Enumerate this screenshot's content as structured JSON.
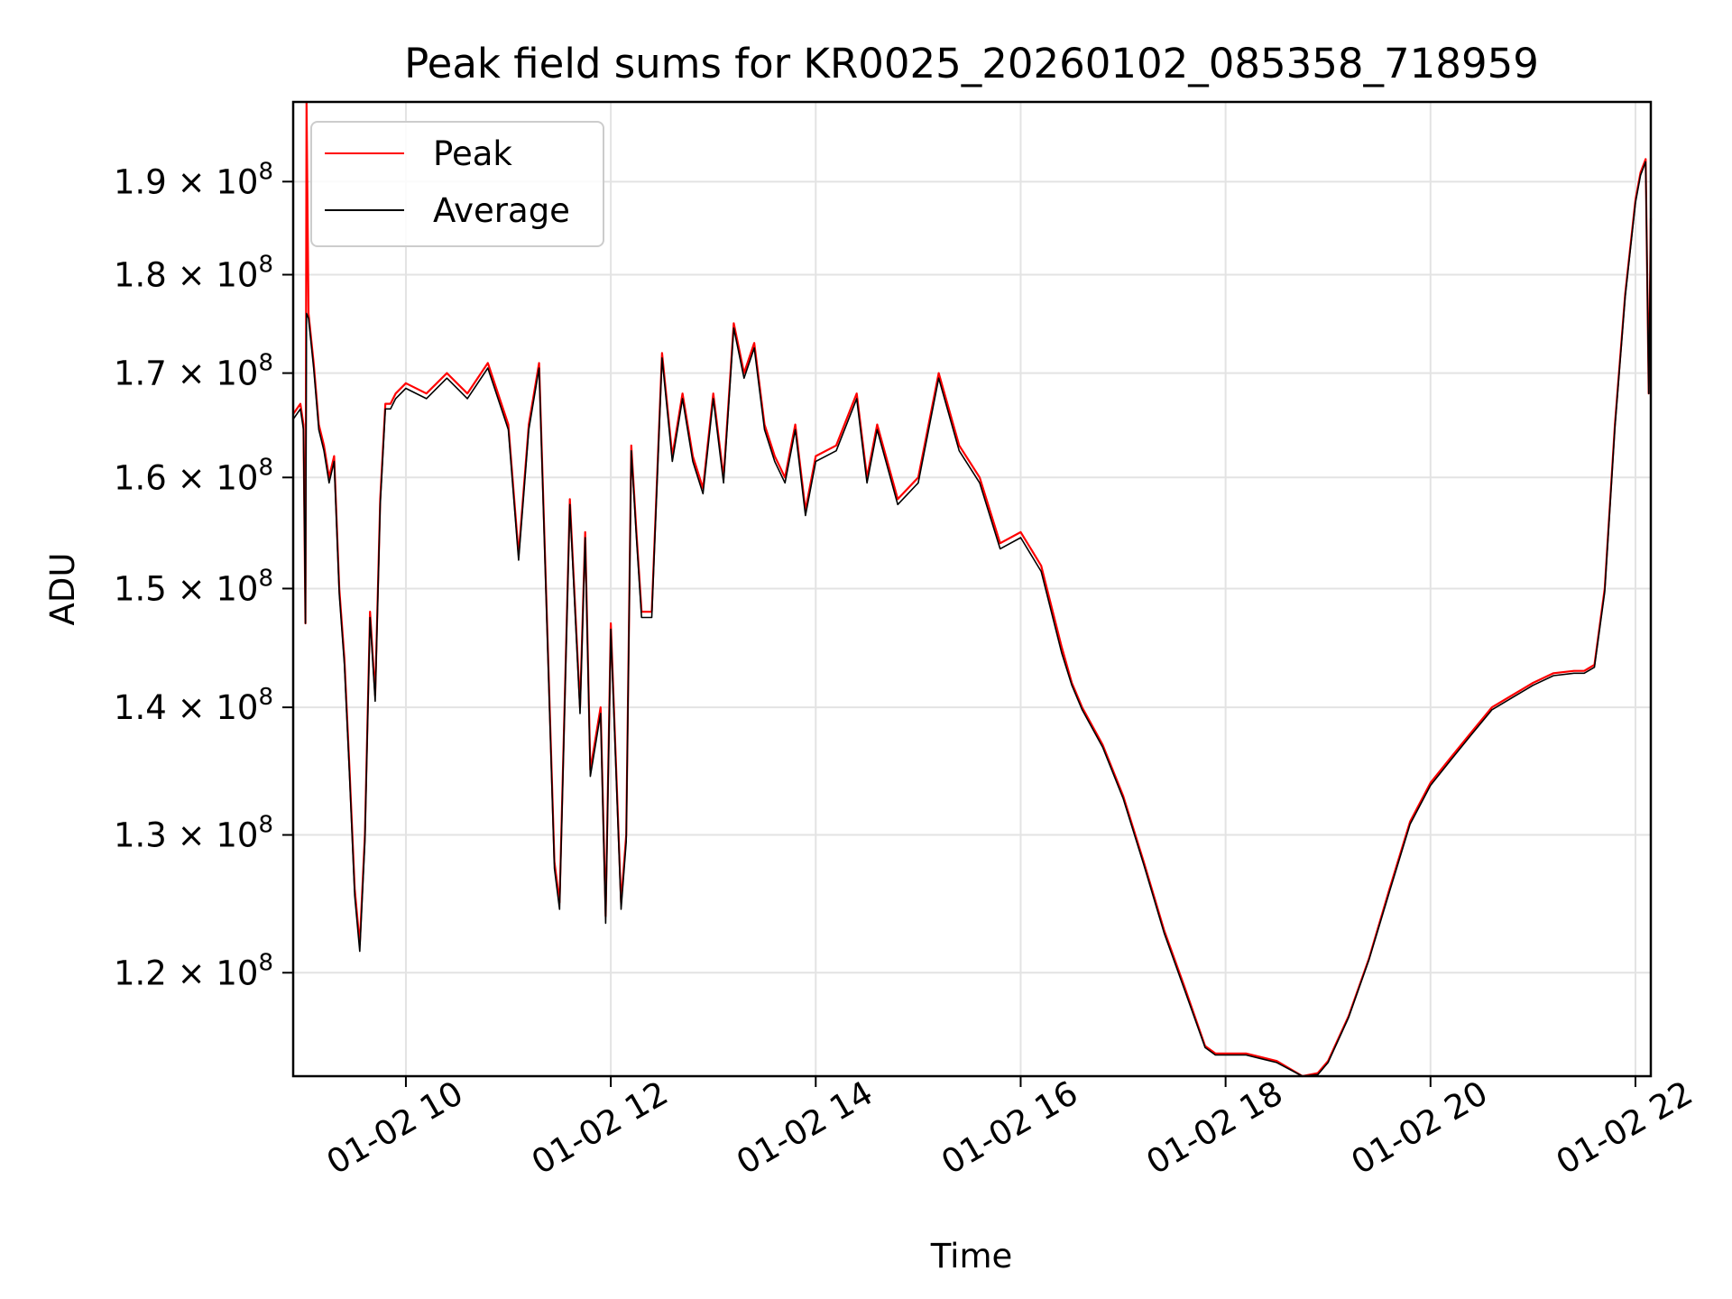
{
  "chart_data": {
    "type": "line",
    "title": "Peak field sums for KR0025_20260102_085358_718959",
    "xlabel": "Time",
    "ylabel": "ADU",
    "y_scale": "log",
    "xlim_hours": [
      8.9,
      22.15
    ],
    "ylim": [
      113000000,
      199000000
    ],
    "grid": true,
    "legend_position": "upper-left",
    "x_ticks": [
      {
        "value": 10,
        "label": "01-02 10"
      },
      {
        "value": 12,
        "label": "01-02 12"
      },
      {
        "value": 14,
        "label": "01-02 14"
      },
      {
        "value": 16,
        "label": "01-02 16"
      },
      {
        "value": 18,
        "label": "01-02 18"
      },
      {
        "value": 20,
        "label": "01-02 20"
      },
      {
        "value": 22,
        "label": "01-02 22"
      }
    ],
    "y_ticks": [
      {
        "value": 120000000,
        "mantissa": "1.2",
        "exp": "8"
      },
      {
        "value": 130000000,
        "mantissa": "1.3",
        "exp": "8"
      },
      {
        "value": 140000000,
        "mantissa": "1.4",
        "exp": "8"
      },
      {
        "value": 150000000,
        "mantissa": "1.5",
        "exp": "8"
      },
      {
        "value": 160000000,
        "mantissa": "1.6",
        "exp": "8"
      },
      {
        "value": 170000000,
        "mantissa": "1.7",
        "exp": "8"
      },
      {
        "value": 180000000,
        "mantissa": "1.8",
        "exp": "8"
      },
      {
        "value": 190000000,
        "mantissa": "1.9",
        "exp": "8"
      }
    ],
    "tick_times_sign": "×",
    "tick_base": "10",
    "series": [
      {
        "name": "Peak",
        "color": "#ff0000",
        "hours": [
          8.9,
          8.97,
          9.0,
          9.02,
          9.03,
          9.05,
          9.1,
          9.15,
          9.2,
          9.25,
          9.3,
          9.35,
          9.4,
          9.45,
          9.5,
          9.55,
          9.6,
          9.65,
          9.7,
          9.75,
          9.8,
          9.85,
          9.9,
          10.0,
          10.2,
          10.4,
          10.6,
          10.8,
          11.0,
          11.1,
          11.2,
          11.3,
          11.45,
          11.5,
          11.6,
          11.7,
          11.75,
          11.8,
          11.9,
          11.95,
          12.0,
          12.1,
          12.15,
          12.2,
          12.25,
          12.3,
          12.4,
          12.5,
          12.6,
          12.7,
          12.8,
          12.9,
          13.0,
          13.1,
          13.2,
          13.3,
          13.4,
          13.5,
          13.6,
          13.7,
          13.8,
          13.9,
          14.0,
          14.2,
          14.4,
          14.5,
          14.6,
          14.8,
          15.0,
          15.2,
          15.4,
          15.6,
          15.8,
          16.0,
          16.2,
          16.4,
          16.5,
          16.6,
          16.8,
          17.0,
          17.2,
          17.4,
          17.6,
          17.8,
          17.9,
          18.2,
          18.5,
          18.75,
          18.9,
          19.0,
          19.2,
          19.4,
          19.6,
          19.8,
          20.0,
          20.2,
          20.4,
          20.6,
          20.8,
          21.0,
          21.2,
          21.4,
          21.5,
          21.6,
          21.7,
          21.8,
          21.9,
          22.0,
          22.05,
          22.1,
          22.13,
          22.15
        ],
        "values": [
          166000000,
          167000000,
          165000000,
          147000000,
          199000000,
          176000000,
          171000000,
          165000000,
          163000000,
          160000000,
          162000000,
          150000000,
          144000000,
          135000000,
          126000000,
          122000000,
          130000000,
          148000000,
          141000000,
          158000000,
          167000000,
          167000000,
          168000000,
          169000000,
          168000000,
          170000000,
          168000000,
          171000000,
          165000000,
          153000000,
          165000000,
          171000000,
          128000000,
          125000000,
          158000000,
          140000000,
          155000000,
          135000000,
          140000000,
          124000000,
          147000000,
          125000000,
          130000000,
          163000000,
          155000000,
          148000000,
          148000000,
          172000000,
          162000000,
          168000000,
          162000000,
          159000000,
          168000000,
          160000000,
          175000000,
          170000000,
          173000000,
          165000000,
          162000000,
          160000000,
          165000000,
          157000000,
          162000000,
          163000000,
          168000000,
          160000000,
          165000000,
          158000000,
          160000000,
          170000000,
          163000000,
          160000000,
          154000000,
          155000000,
          152000000,
          145000000,
          142000000,
          140000000,
          137000000,
          133000000,
          128000000,
          123000000,
          119000000,
          115000000,
          114500000,
          114500000,
          114000000,
          113000000,
          113200000,
          114000000,
          117000000,
          121000000,
          126000000,
          131000000,
          134000000,
          136000000,
          138000000,
          140000000,
          141000000,
          142000000,
          142800000,
          143000000,
          143000000,
          143500000,
          150000000,
          165000000,
          178000000,
          188000000,
          191000000,
          192500000,
          168000000,
          186000000
        ]
      },
      {
        "name": "Average",
        "color": "#000000",
        "hours": [
          8.9,
          8.97,
          9.0,
          9.02,
          9.03,
          9.05,
          9.1,
          9.15,
          9.2,
          9.25,
          9.3,
          9.35,
          9.4,
          9.45,
          9.5,
          9.55,
          9.6,
          9.65,
          9.7,
          9.75,
          9.8,
          9.85,
          9.9,
          10.0,
          10.2,
          10.4,
          10.6,
          10.8,
          11.0,
          11.1,
          11.2,
          11.3,
          11.45,
          11.5,
          11.6,
          11.7,
          11.75,
          11.8,
          11.9,
          11.95,
          12.0,
          12.1,
          12.15,
          12.2,
          12.25,
          12.3,
          12.4,
          12.5,
          12.6,
          12.7,
          12.8,
          12.9,
          13.0,
          13.1,
          13.2,
          13.3,
          13.4,
          13.5,
          13.6,
          13.7,
          13.8,
          13.9,
          14.0,
          14.2,
          14.4,
          14.5,
          14.6,
          14.8,
          15.0,
          15.2,
          15.4,
          15.6,
          15.8,
          16.0,
          16.2,
          16.4,
          16.5,
          16.6,
          16.8,
          17.0,
          17.2,
          17.4,
          17.6,
          17.8,
          17.9,
          18.2,
          18.5,
          18.75,
          18.9,
          19.0,
          19.2,
          19.4,
          19.6,
          19.8,
          20.0,
          20.2,
          20.4,
          20.6,
          20.8,
          21.0,
          21.2,
          21.4,
          21.5,
          21.6,
          21.7,
          21.8,
          21.9,
          22.0,
          22.05,
          22.1,
          22.13,
          22.15
        ],
        "values": [
          165500000,
          166500000,
          164500000,
          147000000,
          176000000,
          175500000,
          170500000,
          164500000,
          162500000,
          159500000,
          161500000,
          149500000,
          143500000,
          134500000,
          125500000,
          121500000,
          129500000,
          147500000,
          140500000,
          157500000,
          166500000,
          166500000,
          167500000,
          168500000,
          167500000,
          169500000,
          167500000,
          170500000,
          164500000,
          152500000,
          164500000,
          170500000,
          127500000,
          124500000,
          157500000,
          139500000,
          154500000,
          134500000,
          139500000,
          123500000,
          146500000,
          124500000,
          129500000,
          162500000,
          154500000,
          147500000,
          147500000,
          171500000,
          161500000,
          167500000,
          161500000,
          158500000,
          167500000,
          159500000,
          174500000,
          169500000,
          172500000,
          164500000,
          161500000,
          159500000,
          164500000,
          156500000,
          161500000,
          162500000,
          167500000,
          159500000,
          164500000,
          157500000,
          159500000,
          169500000,
          162500000,
          159500000,
          153500000,
          154500000,
          151500000,
          144500000,
          141800000,
          139800000,
          136800000,
          132800000,
          127800000,
          122800000,
          118800000,
          114900000,
          114400000,
          114400000,
          113900000,
          112900000,
          113100000,
          113900000,
          116900000,
          120900000,
          125800000,
          130800000,
          133800000,
          135800000,
          137800000,
          139800000,
          140800000,
          141800000,
          142600000,
          142800000,
          142800000,
          143300000,
          149700000,
          164700000,
          177700000,
          187700000,
          190700000,
          192200000,
          168000000,
          185500000
        ]
      }
    ]
  }
}
